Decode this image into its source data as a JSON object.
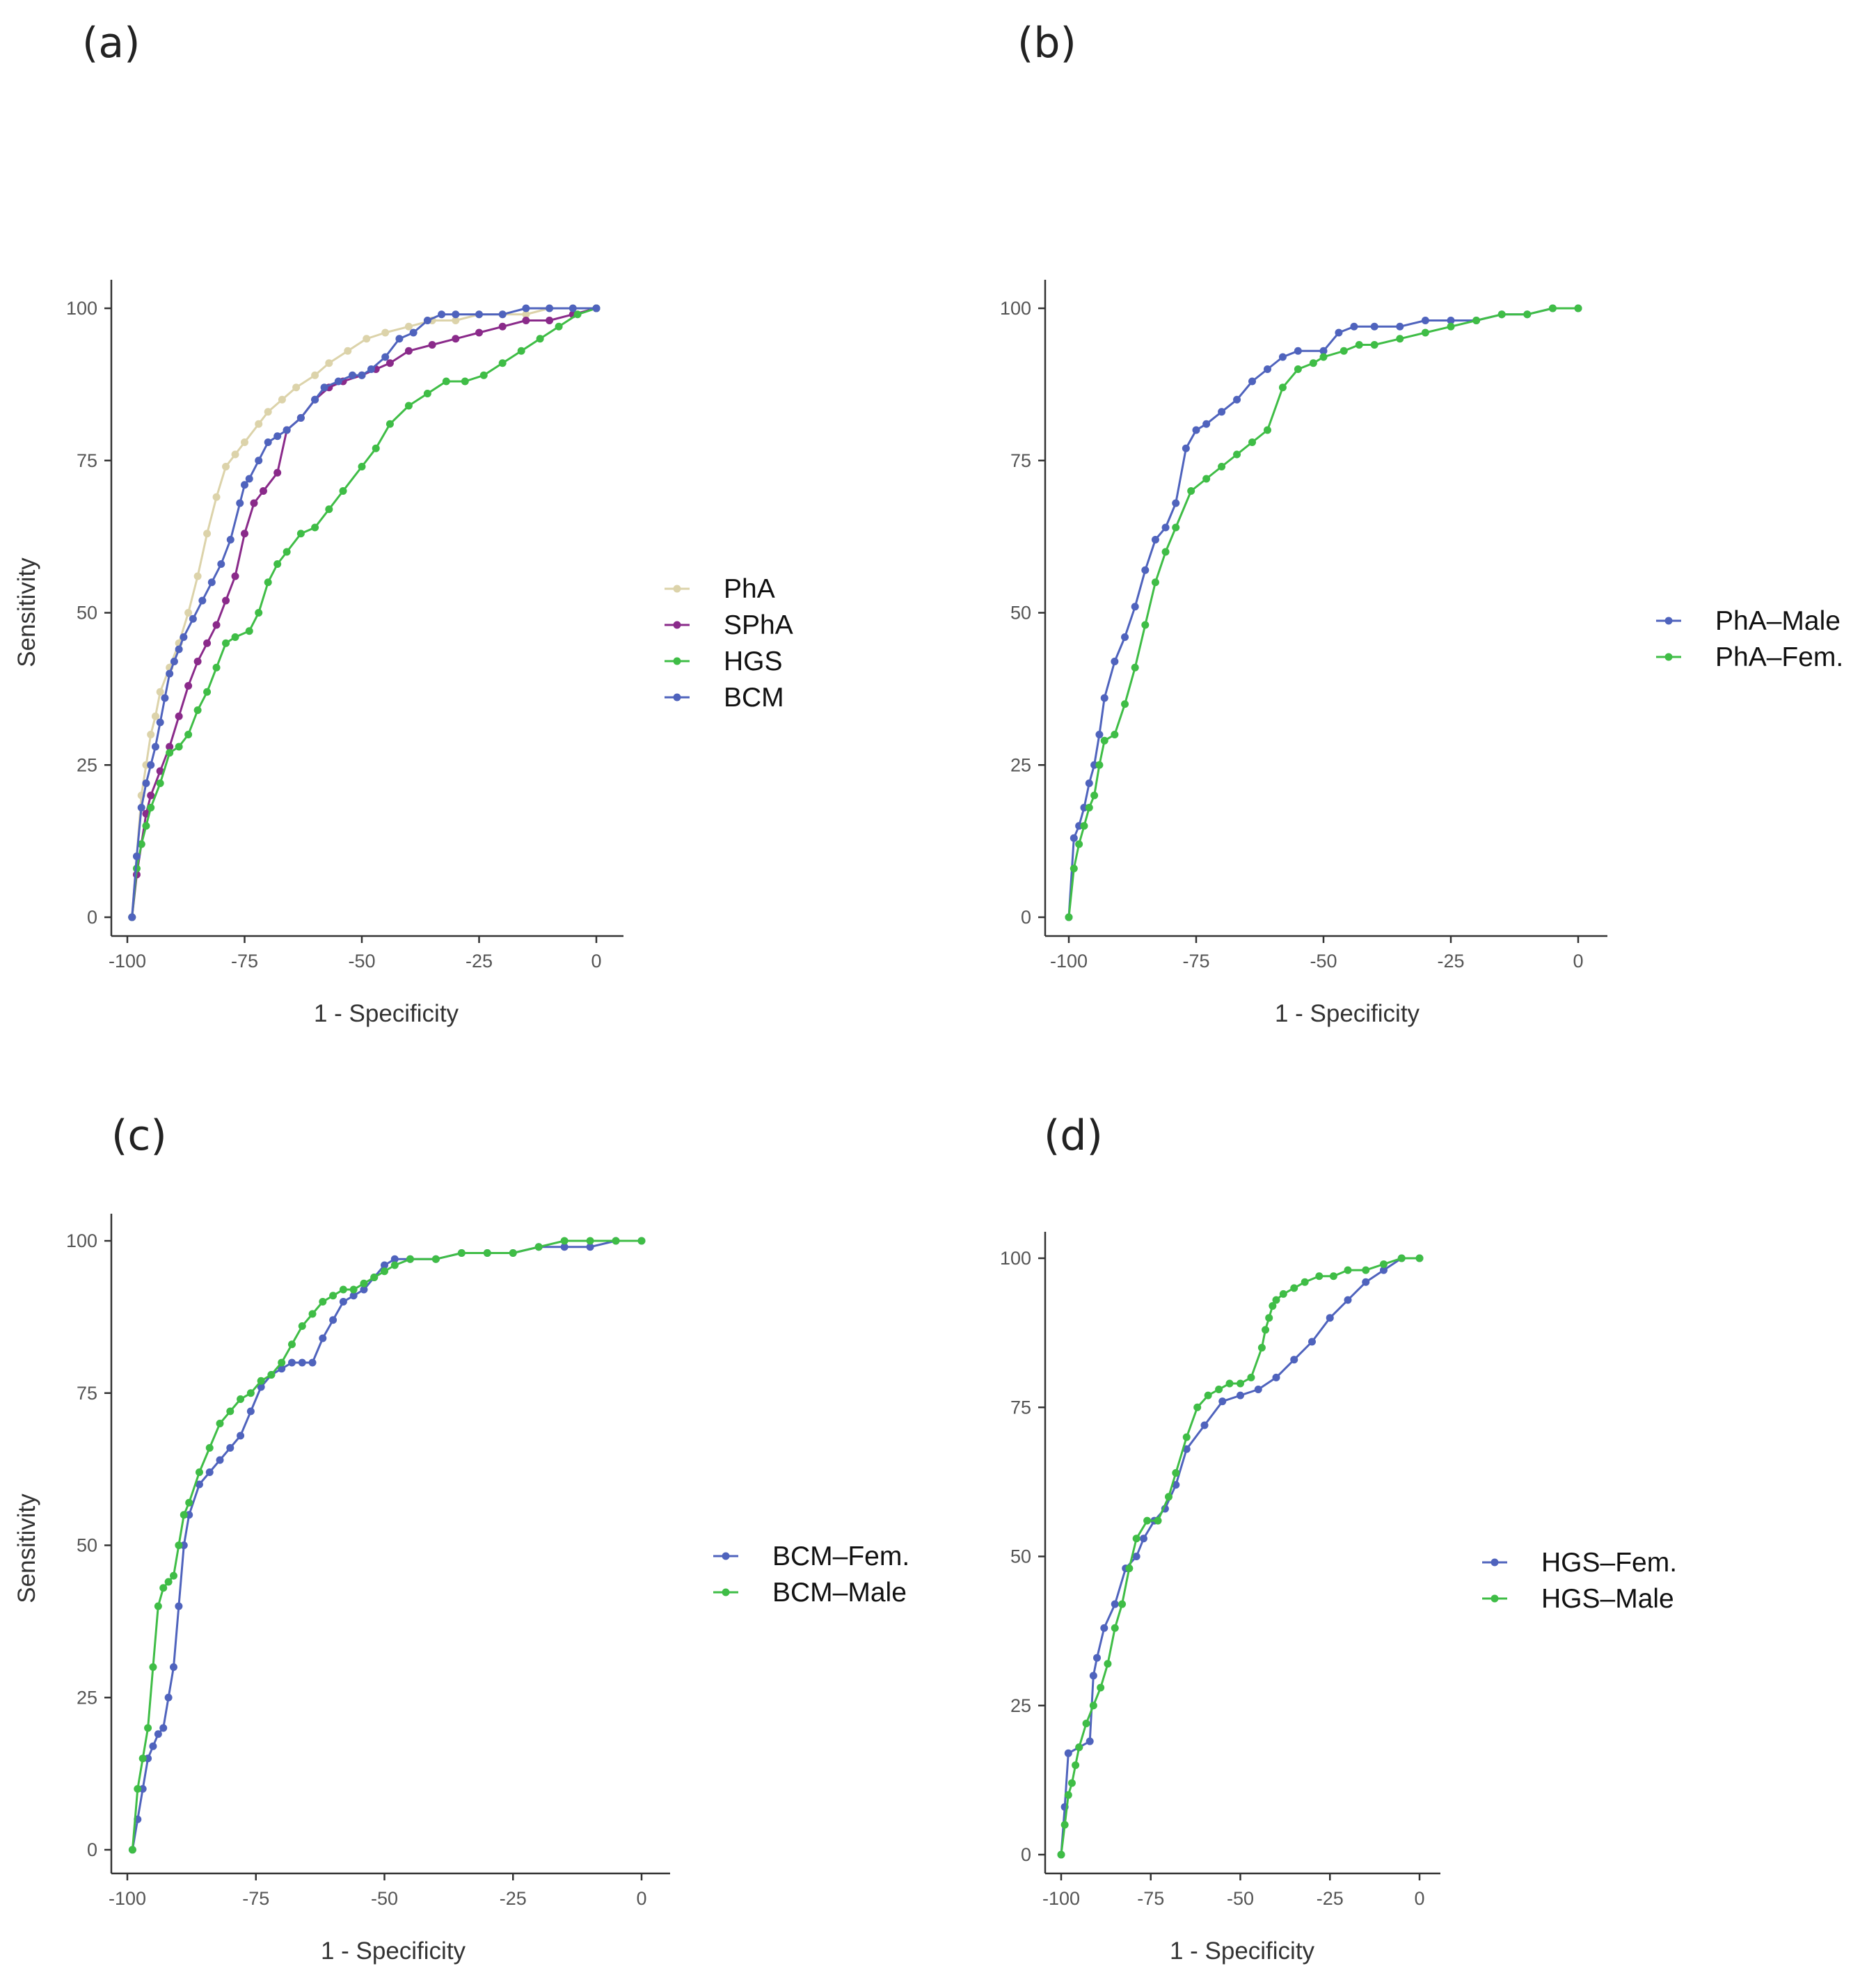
{
  "colors": {
    "BCM": "#4f63bd",
    "HGS": "#3fbd46",
    "PhA": "#dcd3aa",
    "SPhA": "#8a2a8a"
  },
  "chart_data": [
    {
      "panel": "(a)",
      "type": "line",
      "xlabel": "1 - Specificity",
      "ylabel": "Sensitivity",
      "xlim": [
        -100,
        0
      ],
      "ylim": [
        0,
        100
      ],
      "xticks": [
        -100,
        -75,
        -50,
        -25,
        0
      ],
      "yticks": [
        0,
        25,
        50,
        75,
        100
      ],
      "legend_position": "right",
      "series": [
        {
          "name": "PhA",
          "color": "#dcd3aa",
          "x": [
            -99,
            -98,
            -97,
            -96,
            -95,
            -94,
            -93,
            -91,
            -89,
            -87,
            -85,
            -83,
            -81,
            -79,
            -77,
            -75,
            -72,
            -70,
            -67,
            -64,
            -60,
            -57,
            -53,
            -49,
            -45,
            -40,
            -35,
            -30,
            -25,
            -20,
            -15,
            -10,
            -5,
            0
          ],
          "y": [
            0,
            10,
            20,
            25,
            30,
            33,
            37,
            41,
            45,
            50,
            56,
            63,
            69,
            74,
            76,
            78,
            81,
            83,
            85,
            87,
            89,
            91,
            93,
            95,
            96,
            97,
            98,
            98,
            99,
            99,
            99,
            100,
            100,
            100
          ]
        },
        {
          "name": "SPhA",
          "color": "#8a2a8a",
          "x": [
            -99,
            -98,
            -97,
            -96,
            -95,
            -93,
            -91,
            -89,
            -87,
            -85,
            -83,
            -81,
            -79,
            -77,
            -75,
            -73,
            -71,
            -68,
            -66,
            -63,
            -60,
            -57,
            -54,
            -50,
            -47,
            -44,
            -40,
            -35,
            -30,
            -25,
            -20,
            -15,
            -10,
            -5,
            0
          ],
          "y": [
            0,
            7,
            12,
            17,
            20,
            24,
            28,
            33,
            38,
            42,
            45,
            48,
            52,
            56,
            63,
            68,
            70,
            73,
            80,
            82,
            85,
            87,
            88,
            89,
            90,
            91,
            93,
            94,
            95,
            96,
            97,
            98,
            98,
            99,
            100
          ]
        },
        {
          "name": "HGS",
          "color": "#3fbd46",
          "x": [
            -99,
            -98,
            -97,
            -96,
            -95,
            -93,
            -91,
            -89,
            -87,
            -85,
            -83,
            -81,
            -79,
            -77,
            -74,
            -72,
            -70,
            -68,
            -66,
            -63,
            -60,
            -57,
            -54,
            -50,
            -47,
            -44,
            -40,
            -36,
            -32,
            -28,
            -24,
            -20,
            -16,
            -12,
            -8,
            -4,
            0
          ],
          "y": [
            0,
            8,
            12,
            15,
            18,
            22,
            27,
            28,
            30,
            34,
            37,
            41,
            45,
            46,
            47,
            50,
            55,
            58,
            60,
            63,
            64,
            67,
            70,
            74,
            77,
            81,
            84,
            86,
            88,
            88,
            89,
            91,
            93,
            95,
            97,
            99,
            100
          ]
        },
        {
          "name": "BCM",
          "color": "#4f63bd",
          "x": [
            -99,
            -98,
            -97,
            -96,
            -95,
            -94,
            -93,
            -92,
            -91,
            -90,
            -89,
            -88,
            -86,
            -84,
            -82,
            -80,
            -78,
            -76,
            -75,
            -74,
            -72,
            -70,
            -68,
            -66,
            -63,
            -60,
            -58,
            -55,
            -52,
            -50,
            -48,
            -45,
            -42,
            -39,
            -36,
            -33,
            -30,
            -25,
            -20,
            -15,
            -10,
            -5,
            0
          ],
          "y": [
            0,
            10,
            18,
            22,
            25,
            28,
            32,
            36,
            40,
            42,
            44,
            46,
            49,
            52,
            55,
            58,
            62,
            68,
            71,
            72,
            75,
            78,
            79,
            80,
            82,
            85,
            87,
            88,
            89,
            89,
            90,
            92,
            95,
            96,
            98,
            99,
            99,
            99,
            99,
            100,
            100,
            100,
            100
          ]
        }
      ]
    },
    {
      "panel": "(b)",
      "type": "line",
      "xlabel": "1 - Specificity",
      "ylabel": "",
      "xlim": [
        -100,
        0
      ],
      "ylim": [
        0,
        100
      ],
      "xticks": [
        -100,
        -75,
        -50,
        -25,
        0
      ],
      "yticks": [
        0,
        25,
        50,
        75,
        100
      ],
      "legend_position": "right",
      "series": [
        {
          "name": "PhA–Male",
          "color": "#4f63bd",
          "x": [
            -100,
            -99,
            -98,
            -97,
            -96,
            -95,
            -94,
            -93,
            -91,
            -89,
            -87,
            -85,
            -83,
            -81,
            -79,
            -77,
            -75,
            -73,
            -70,
            -67,
            -64,
            -61,
            -58,
            -55,
            -50,
            -47,
            -44,
            -40,
            -35,
            -30,
            -25,
            -20,
            -15,
            -10,
            -5,
            0
          ],
          "y": [
            0,
            13,
            15,
            18,
            22,
            25,
            30,
            36,
            42,
            46,
            51,
            57,
            62,
            64,
            68,
            77,
            80,
            81,
            83,
            85,
            88,
            90,
            92,
            93,
            93,
            96,
            97,
            97,
            97,
            98,
            98,
            98,
            99,
            99,
            100,
            100
          ]
        },
        {
          "name": "PhA–Fem.",
          "color": "#3fbd46",
          "x": [
            -100,
            -99,
            -98,
            -97,
            -96,
            -95,
            -94,
            -93,
            -91,
            -89,
            -87,
            -85,
            -83,
            -81,
            -79,
            -76,
            -73,
            -70,
            -67,
            -64,
            -61,
            -58,
            -55,
            -52,
            -50,
            -46,
            -43,
            -40,
            -35,
            -30,
            -25,
            -20,
            -15,
            -10,
            -5,
            0
          ],
          "y": [
            0,
            8,
            12,
            15,
            18,
            20,
            25,
            29,
            30,
            35,
            41,
            48,
            55,
            60,
            64,
            70,
            72,
            74,
            76,
            78,
            80,
            87,
            90,
            91,
            92,
            93,
            94,
            94,
            95,
            96,
            97,
            98,
            99,
            99,
            100,
            100
          ]
        }
      ]
    },
    {
      "panel": "(c)",
      "type": "line",
      "xlabel": "1 - Specificity",
      "ylabel": "Sensitivity",
      "xlim": [
        -100,
        0
      ],
      "ylim": [
        0,
        100
      ],
      "xticks": [
        -100,
        -75,
        -50,
        -25,
        0
      ],
      "yticks": [
        0,
        25,
        50,
        75,
        100
      ],
      "legend_position": "right",
      "series": [
        {
          "name": "BCM–Fem.",
          "color": "#4f63bd",
          "x": [
            -99,
            -98,
            -97,
            -96,
            -95,
            -94,
            -93,
            -92,
            -91,
            -90,
            -89,
            -88,
            -86,
            -84,
            -82,
            -80,
            -78,
            -76,
            -74,
            -72,
            -70,
            -68,
            -66,
            -64,
            -62,
            -60,
            -58,
            -56,
            -54,
            -52,
            -50,
            -48,
            -45,
            -40,
            -35,
            -30,
            -25,
            -20,
            -15,
            -10,
            -5,
            0
          ],
          "y": [
            0,
            5,
            10,
            15,
            17,
            19,
            20,
            25,
            30,
            40,
            50,
            55,
            60,
            62,
            64,
            66,
            68,
            72,
            76,
            78,
            79,
            80,
            80,
            80,
            84,
            87,
            90,
            91,
            92,
            94,
            96,
            97,
            97,
            97,
            98,
            98,
            98,
            99,
            99,
            99,
            100,
            100
          ]
        },
        {
          "name": "BCM–Male",
          "color": "#3fbd46",
          "x": [
            -99,
            -98,
            -97,
            -96,
            -95,
            -94,
            -93,
            -92,
            -91,
            -90,
            -89,
            -88,
            -86,
            -84,
            -82,
            -80,
            -78,
            -76,
            -74,
            -72,
            -70,
            -68,
            -66,
            -64,
            -62,
            -60,
            -58,
            -56,
            -54,
            -52,
            -50,
            -48,
            -45,
            -40,
            -35,
            -30,
            -25,
            -20,
            -15,
            -10,
            -5,
            0
          ],
          "y": [
            0,
            10,
            15,
            20,
            30,
            40,
            43,
            44,
            45,
            50,
            55,
            57,
            62,
            66,
            70,
            72,
            74,
            75,
            77,
            78,
            80,
            83,
            86,
            88,
            90,
            91,
            92,
            92,
            93,
            94,
            95,
            96,
            97,
            97,
            98,
            98,
            98,
            99,
            100,
            100,
            100,
            100
          ]
        }
      ]
    },
    {
      "panel": "(d)",
      "type": "line",
      "xlabel": "1 - Specificity",
      "ylabel": "",
      "xlim": [
        -100,
        0
      ],
      "ylim": [
        0,
        100
      ],
      "xticks": [
        -100,
        -75,
        -50,
        -25,
        0
      ],
      "yticks": [
        0,
        25,
        50,
        75,
        100
      ],
      "legend_position": "right",
      "series": [
        {
          "name": "HGS–Fem.",
          "color": "#4f63bd",
          "x": [
            -100,
            -99,
            -98,
            -95,
            -92,
            -91,
            -90,
            -88,
            -85,
            -82,
            -79,
            -77,
            -74,
            -71,
            -68,
            -65,
            -60,
            -55,
            -50,
            -45,
            -40,
            -35,
            -30,
            -25,
            -20,
            -15,
            -10,
            -5,
            0
          ],
          "y": [
            0,
            8,
            17,
            18,
            19,
            30,
            33,
            38,
            42,
            48,
            50,
            53,
            56,
            58,
            62,
            68,
            72,
            76,
            77,
            78,
            80,
            83,
            86,
            90,
            93,
            96,
            98,
            100,
            100
          ]
        },
        {
          "name": "HGS–Male",
          "color": "#3fbd46",
          "x": [
            -100,
            -99,
            -98,
            -97,
            -96,
            -95,
            -93,
            -91,
            -89,
            -87,
            -85,
            -83,
            -81,
            -79,
            -76,
            -73,
            -70,
            -68,
            -65,
            -62,
            -59,
            -56,
            -53,
            -50,
            -47,
            -44,
            -43,
            -42,
            -41,
            -40,
            -38,
            -35,
            -32,
            -28,
            -24,
            -20,
            -15,
            -10,
            -5,
            0
          ],
          "y": [
            0,
            5,
            10,
            12,
            15,
            18,
            22,
            25,
            28,
            32,
            38,
            42,
            48,
            53,
            56,
            56,
            60,
            64,
            70,
            75,
            77,
            78,
            79,
            79,
            80,
            85,
            88,
            90,
            92,
            93,
            94,
            95,
            96,
            97,
            97,
            98,
            98,
            99,
            100,
            100
          ]
        }
      ]
    }
  ]
}
